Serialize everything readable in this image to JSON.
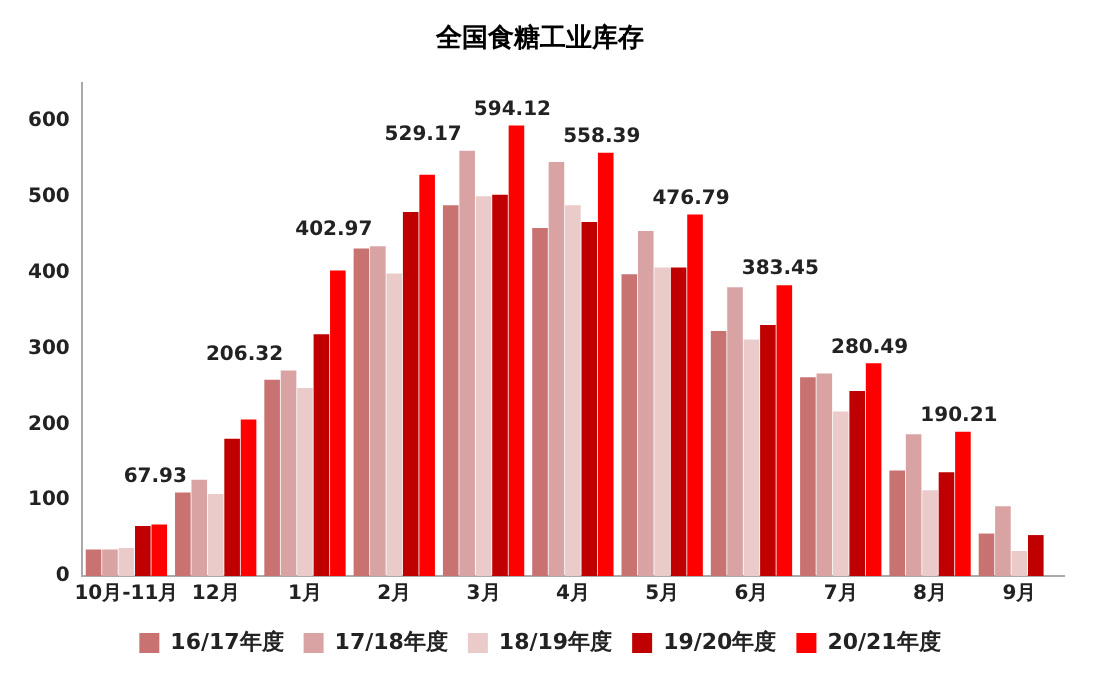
{
  "chart_data": {
    "type": "bar",
    "title": "全国食糖工业库存",
    "categories": [
      "10月-11月",
      "12月",
      "1月",
      "2月",
      "3月",
      "4月",
      "5月",
      "6月",
      "7月",
      "8月",
      "9月"
    ],
    "series": [
      {
        "name": "16/17年度",
        "color": "#c87272",
        "values": [
          35,
          110,
          259,
          432,
          489,
          459,
          398,
          323,
          262,
          139,
          56
        ]
      },
      {
        "name": "17/18年度",
        "color": "#d9a3a3",
        "values": [
          35,
          127,
          271,
          435,
          561,
          546,
          455,
          381,
          267,
          187,
          92
        ]
      },
      {
        "name": "18/19年度",
        "color": "#ebcaca",
        "values": [
          37,
          108,
          248,
          399,
          501,
          489,
          407,
          312,
          217,
          113,
          33
        ]
      },
      {
        "name": "19/20年度",
        "color": "#c00000",
        "values": [
          66,
          181,
          319,
          480,
          503,
          467,
          407,
          331,
          244,
          137,
          54
        ]
      },
      {
        "name": "20/21年度",
        "color": "#ff0000",
        "values": [
          67.93,
          206.32,
          402.97,
          529.17,
          594.12,
          558.39,
          476.79,
          383.45,
          280.49,
          190.21,
          null
        ],
        "value_labels": [
          "67.93",
          "206.32",
          "402.97",
          "529.17",
          "594.12",
          "558.39",
          "476.79",
          "383.45",
          "280.49",
          "190.21",
          null
        ]
      }
    ],
    "ylim": [
      0,
      650
    ],
    "yticks": [
      0,
      100,
      200,
      300,
      400,
      500,
      600
    ],
    "grid": false,
    "legend": "bottom"
  }
}
